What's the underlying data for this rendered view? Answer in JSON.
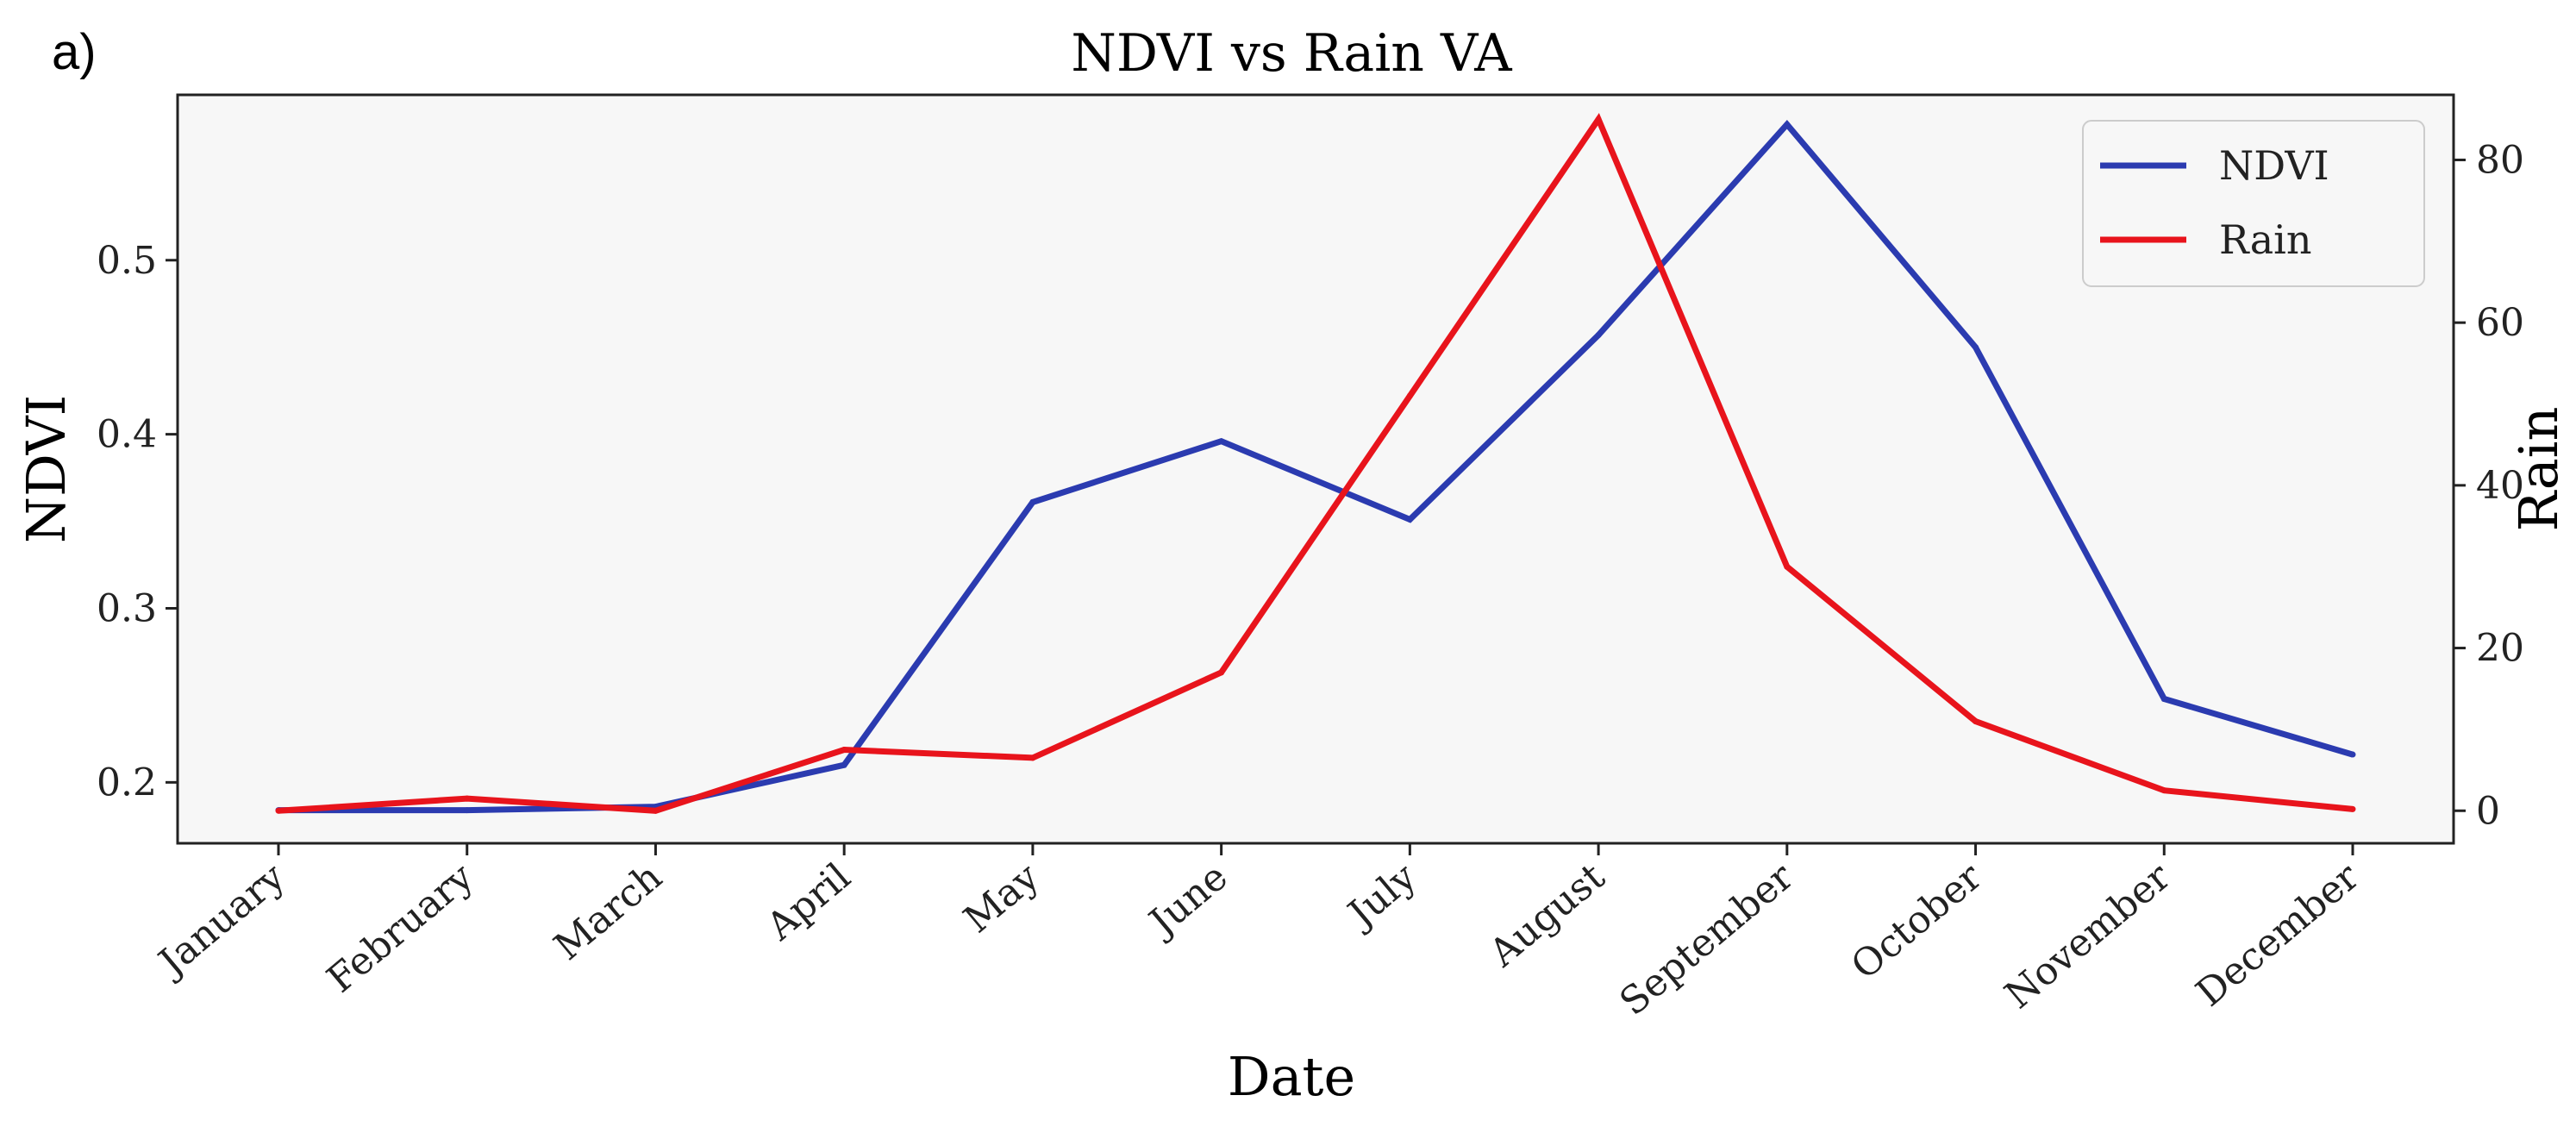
{
  "panel_label": "a)",
  "chart_data": {
    "type": "line",
    "title": "NDVI vs Rain VA",
    "xlabel": "Date",
    "ylabel": "NDVI",
    "y2label": "Rain",
    "categories": [
      "January",
      "February",
      "March",
      "April",
      "May",
      "June",
      "July",
      "August",
      "September",
      "October",
      "November",
      "December"
    ],
    "series": [
      {
        "name": "NDVI",
        "axis": "left",
        "color": "#2b3bb0",
        "values": [
          0.184,
          0.184,
          0.186,
          0.21,
          0.361,
          0.396,
          0.351,
          0.457,
          0.578,
          0.45,
          0.248,
          0.216
        ]
      },
      {
        "name": "Rain",
        "axis": "right",
        "color": "#e8141c",
        "values": [
          0,
          1.5,
          0,
          7.5,
          6.5,
          17,
          51,
          85,
          30,
          11,
          2.5,
          0.2
        ]
      }
    ],
    "ylim": [
      0.165,
      0.595
    ],
    "y2lim": [
      -4,
      88
    ],
    "yticks": [
      0.2,
      0.3,
      0.4,
      0.5
    ],
    "y2ticks": [
      0,
      20,
      40,
      60,
      80
    ],
    "ytick_labels": [
      "0.2",
      "0.3",
      "0.4",
      "0.5"
    ],
    "y2tick_labels": [
      "0",
      "20",
      "40",
      "60",
      "80"
    ],
    "legend": {
      "position": "top-right",
      "entries": [
        "NDVI",
        "Rain"
      ]
    },
    "grid": false,
    "plot_background": "#f7f7f7"
  }
}
